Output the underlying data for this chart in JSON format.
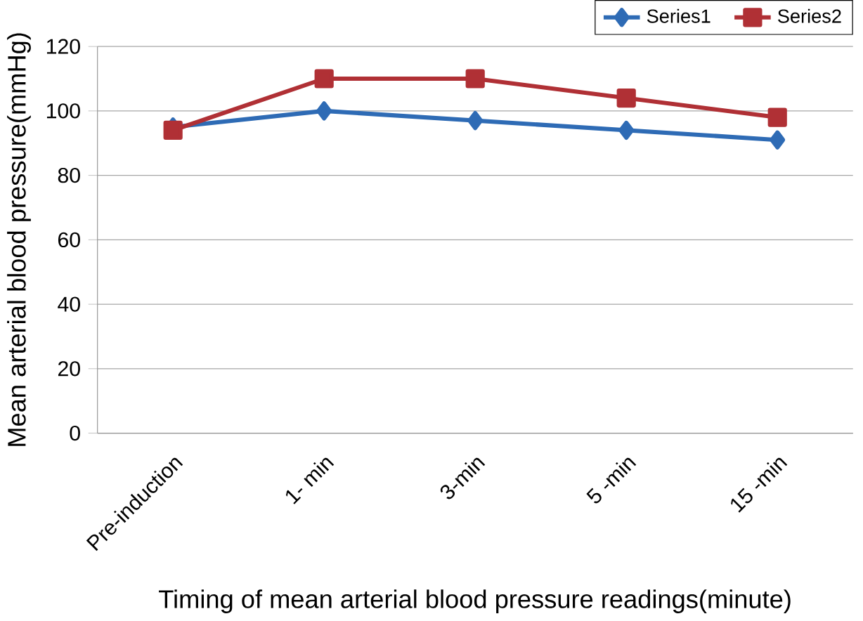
{
  "chart_data": {
    "type": "line",
    "xlabel": "Timing of mean arterial blood pressure readings(minute)",
    "ylabel": "Mean arterial blood pressure(mmHg)",
    "categories": [
      "Pre-induction",
      "1- min",
      "3-min",
      "5 -min",
      "15 -min"
    ],
    "series": [
      {
        "name": "Series1",
        "color": "#2e6bb5",
        "marker": "diamond",
        "values": [
          95,
          100,
          97,
          94,
          91
        ]
      },
      {
        "name": "Series2",
        "color": "#b03035",
        "marker": "square",
        "values": [
          94,
          110,
          110,
          104,
          98
        ]
      }
    ],
    "ylim": [
      0,
      120
    ],
    "yticks": [
      0,
      20,
      40,
      60,
      80,
      100,
      120
    ],
    "grid": "y",
    "legend": "top right",
    "line_style": "solid"
  }
}
